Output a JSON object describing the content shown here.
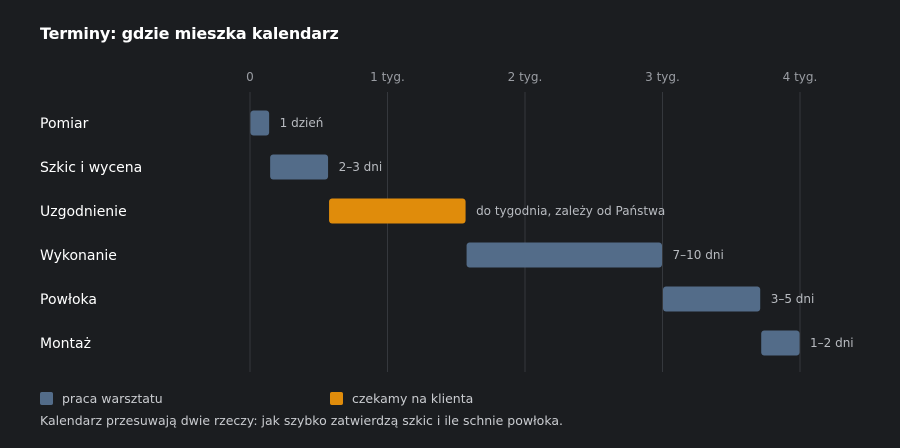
{
  "title": "Terminy: gdzie mieszka kalendarz",
  "colors": {
    "background": "#1b1d20",
    "grid": "#35383d",
    "workshop": "#536c89",
    "client": "#e08c0b",
    "axis_text": "#9a9da3",
    "category_text": "#ffffff",
    "bar_label_text": "#b8bbc0"
  },
  "chart_data": {
    "type": "bar",
    "orientation": "horizontal-gantt",
    "x_unit": "days",
    "xlim": [
      0,
      28
    ],
    "x_ticks": [
      {
        "value": 0,
        "label": "0"
      },
      {
        "value": 7,
        "label": "1 tyg."
      },
      {
        "value": 14,
        "label": "2 tyg."
      },
      {
        "value": 21,
        "label": "3 tyg."
      },
      {
        "value": 28,
        "label": "4 tyg."
      }
    ],
    "grid": true,
    "legend_position": "bottom-left",
    "tasks": [
      {
        "name": "Pomiar",
        "start": 0,
        "end": 1,
        "label": "1 dzień",
        "series": "workshop"
      },
      {
        "name": "Szkic i wycena",
        "start": 1,
        "end": 4,
        "label": "2–3 dni",
        "series": "workshop"
      },
      {
        "name": "Uzgodnienie",
        "start": 4,
        "end": 11,
        "label": "do tygodnia, zależy od Państwa",
        "series": "client"
      },
      {
        "name": "Wykonanie",
        "start": 11,
        "end": 21,
        "label": "7–10 dni",
        "series": "workshop"
      },
      {
        "name": "Powłoka",
        "start": 21,
        "end": 26,
        "label": "3–5 dni",
        "series": "workshop"
      },
      {
        "name": "Montaż",
        "start": 26,
        "end": 28,
        "label": "1–2 dni",
        "series": "workshop"
      }
    ],
    "series": [
      {
        "key": "workshop",
        "name": "praca warsztatu"
      },
      {
        "key": "client",
        "name": "czekamy na klienta"
      }
    ]
  },
  "legend": {
    "workshop": "praca warsztatu",
    "client": "czekamy na klienta"
  },
  "footnote": "Kalendarz przesuwają dwie rzeczy: jak szybko zatwierdzą szkic i ile schnie powłoka."
}
